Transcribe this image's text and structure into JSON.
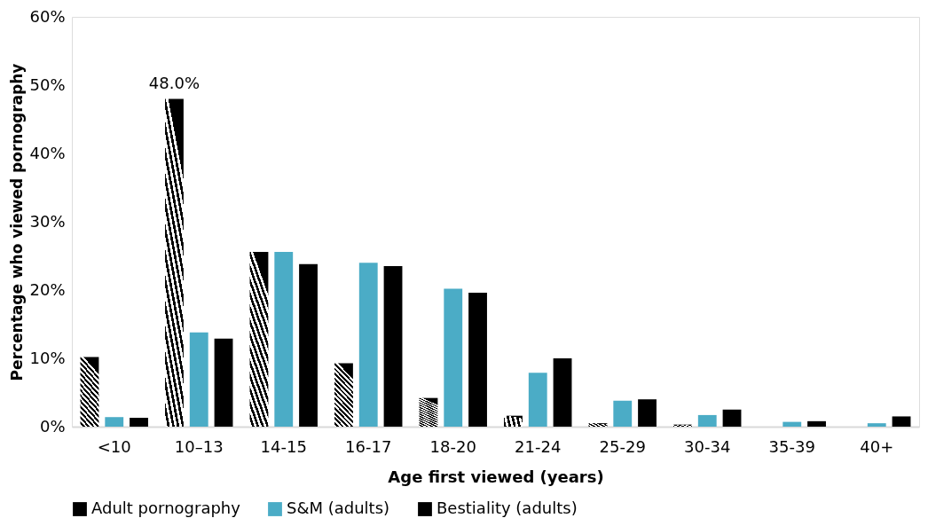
{
  "chart_data": {
    "type": "bar",
    "xlabel": "Age first viewed (years)",
    "ylabel": "Percentage who viewed pornography",
    "categories": [
      "<10",
      "10–13",
      "14-15",
      "16-17",
      "18-20",
      "21-24",
      "25-29",
      "30-34",
      "35-39",
      "40+"
    ],
    "series": [
      {
        "name": "Adult pornography",
        "color": "#000000",
        "values": [
          10.2,
          48.0,
          25.6,
          9.3,
          4.2,
          1.6,
          0.5,
          0.3,
          0,
          0
        ],
        "value_labels": [
          null,
          "48.0%",
          null,
          null,
          null,
          null,
          null,
          null,
          null,
          null
        ]
      },
      {
        "name": "S&M (adults)",
        "color": "#4bacc6",
        "values": [
          1.4,
          13.8,
          25.6,
          24.0,
          20.2,
          7.9,
          3.8,
          1.7,
          0.7,
          0.5
        ]
      },
      {
        "name": "Bestiality (adults)",
        "color": "#000000",
        "values": [
          1.3,
          12.9,
          23.8,
          23.5,
          19.6,
          10.0,
          4.0,
          2.5,
          0.8,
          1.5
        ]
      }
    ],
    "ylim": [
      0,
      60
    ],
    "yticks": [
      {
        "value": 0,
        "label": "0%"
      },
      {
        "value": 10,
        "label": "10%"
      },
      {
        "value": 20,
        "label": "20%"
      },
      {
        "value": 30,
        "label": "30%"
      },
      {
        "value": 40,
        "label": "40%"
      },
      {
        "value": 50,
        "label": "50%"
      },
      {
        "value": 60,
        "label": "60%"
      }
    ],
    "grid": false,
    "legend": "bottom"
  }
}
